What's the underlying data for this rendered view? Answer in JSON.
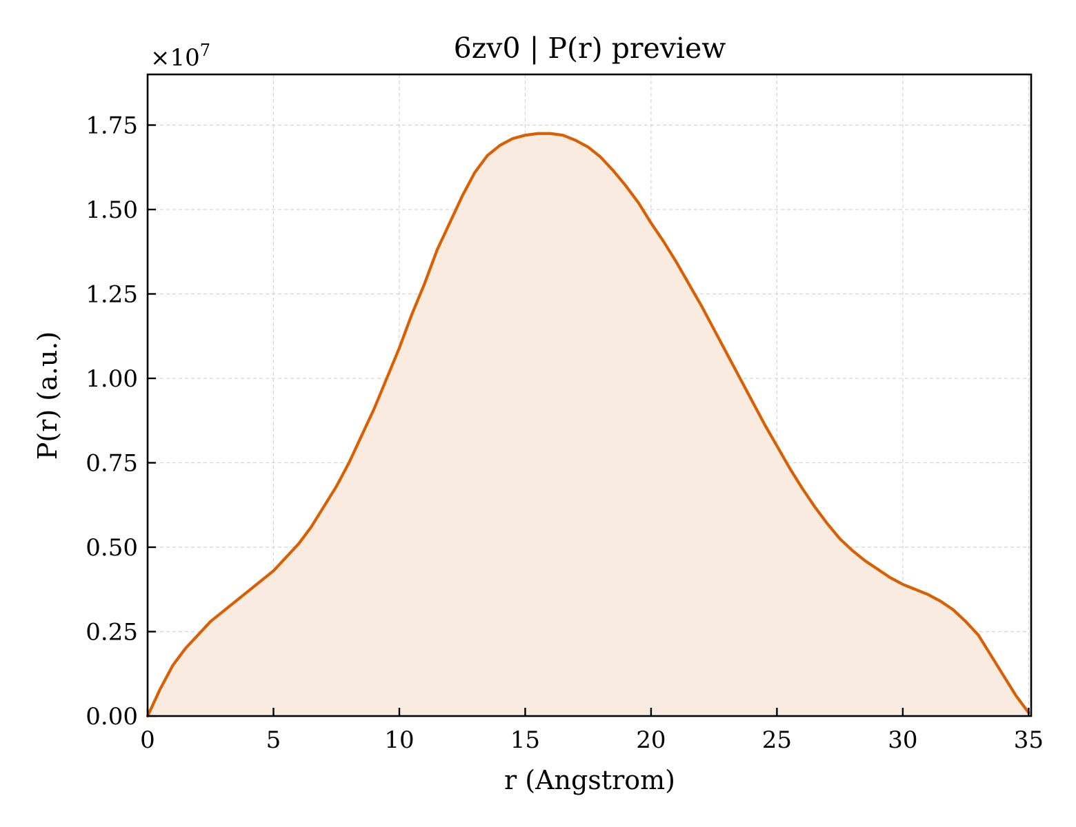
{
  "chart_data": {
    "type": "area",
    "title": "6zv0 | P(r) preview",
    "xlabel": "r (Angstrom)",
    "ylabel": "P(r) (a.u.)",
    "y_offset_label": "×10",
    "y_offset_exponent": "7",
    "xlim": [
      0,
      35.1
    ],
    "ylim": [
      0,
      1.9
    ],
    "y_scale_multiplier": 10000000,
    "grid": true,
    "x_ticks": [
      "0",
      "5",
      "10",
      "15",
      "20",
      "25",
      "30",
      "35"
    ],
    "x_tick_values": [
      0,
      5,
      10,
      15,
      20,
      25,
      30,
      35
    ],
    "y_ticks": [
      "0.00",
      "0.25",
      "0.50",
      "0.75",
      "1.00",
      "1.25",
      "1.50",
      "1.75"
    ],
    "y_tick_values": [
      0,
      0.25,
      0.5,
      0.75,
      1.0,
      1.25,
      1.5,
      1.75
    ],
    "line_color": "#d95f02",
    "fill_color": "#f9ebe0",
    "series": [
      {
        "x": [
          0,
          0.5,
          1,
          1.5,
          2,
          2.5,
          3,
          3.5,
          4,
          4.5,
          5,
          5.5,
          6,
          6.5,
          7,
          7.5,
          8,
          8.5,
          9,
          9.5,
          10,
          10.5,
          11,
          11.5,
          12,
          12.5,
          13,
          13.5,
          14,
          14.5,
          15,
          15.5,
          16,
          16.5,
          17,
          17.5,
          18,
          18.5,
          19,
          19.5,
          20,
          20.5,
          21,
          21.5,
          22,
          22.5,
          23,
          23.5,
          24,
          24.5,
          25,
          25.5,
          26,
          26.5,
          27,
          27.5,
          28,
          28.5,
          29,
          29.5,
          30,
          30.5,
          31,
          31.5,
          32,
          32.5,
          33,
          33.5,
          34,
          34.5,
          35
        ],
        "y": [
          0,
          0.08,
          0.15,
          0.2,
          0.24,
          0.28,
          0.31,
          0.34,
          0.37,
          0.4,
          0.43,
          0.47,
          0.51,
          0.56,
          0.62,
          0.68,
          0.75,
          0.83,
          0.91,
          1.0,
          1.09,
          1.19,
          1.28,
          1.38,
          1.46,
          1.54,
          1.61,
          1.66,
          1.69,
          1.71,
          1.72,
          1.725,
          1.725,
          1.72,
          1.705,
          1.685,
          1.655,
          1.615,
          1.57,
          1.52,
          1.46,
          1.405,
          1.345,
          1.28,
          1.215,
          1.145,
          1.075,
          1.005,
          0.935,
          0.865,
          0.8,
          0.735,
          0.675,
          0.62,
          0.57,
          0.525,
          0.49,
          0.46,
          0.435,
          0.41,
          0.39,
          0.375,
          0.36,
          0.34,
          0.315,
          0.28,
          0.24,
          0.18,
          0.12,
          0.06,
          0.01
        ]
      }
    ]
  }
}
